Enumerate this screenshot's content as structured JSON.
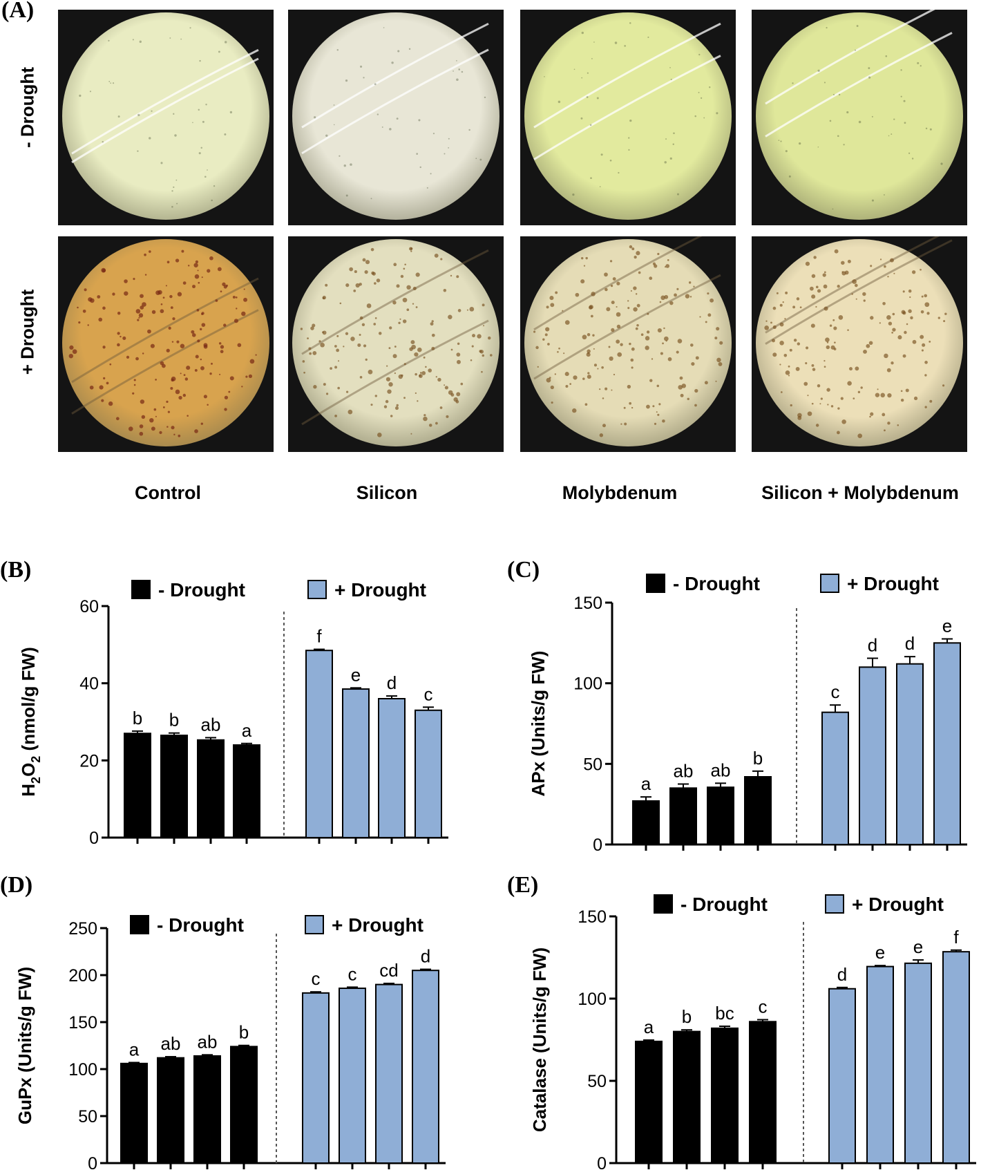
{
  "panel_a": {
    "label": "(A)",
    "row_labels": [
      "- Drought",
      "+ Drought"
    ],
    "column_labels": [
      "Control",
      "Silicon",
      "Molybdenum",
      "Silicon + Molybdenum"
    ],
    "colors": {
      "minus": [
        "#e9ecc2",
        "#e8e6d6",
        "#e2ea9e",
        "#dfe79a"
      ],
      "plus": [
        "#d8a34e",
        "#e3dfbf",
        "#e5dcb6",
        "#ecdfb8"
      ]
    }
  },
  "chart_data": [
    {
      "id": "B",
      "panel_label": "(B)",
      "type": "bar",
      "ylabel": "H2O2 (nmol/g FW)",
      "ylabel_main": "H",
      "ylabel_sub1": "2",
      "ylabel_mid": "O",
      "ylabel_sub2": "2",
      "ylabel_rest": " (nmol/g FW)",
      "ylim": [
        0,
        60
      ],
      "yticks": [
        "0",
        "20",
        "40",
        "60"
      ],
      "legend": [
        "- Drought",
        "+ Drought"
      ],
      "series": [
        {
          "name": "- Drought",
          "color": "#000000",
          "values": [
            27,
            26.5,
            25.3,
            24
          ],
          "errors": [
            0.6,
            0.6,
            0.6,
            0.4
          ],
          "letters": [
            "b",
            "b",
            "ab",
            "a"
          ]
        },
        {
          "name": "+ Drought",
          "color": "#8faed6",
          "values": [
            48.5,
            38.5,
            36,
            33
          ],
          "errors": [
            0.3,
            0.3,
            0.7,
            0.8
          ],
          "letters": [
            "f",
            "e",
            "d",
            "c"
          ]
        }
      ]
    },
    {
      "id": "C",
      "panel_label": "(C)",
      "type": "bar",
      "ylabel": "APx (Units/g FW)",
      "ylim": [
        0,
        150
      ],
      "yticks": [
        "0",
        "50",
        "100",
        "150"
      ],
      "legend": [
        "- Drought",
        "+ Drought"
      ],
      "series": [
        {
          "name": "- Drought",
          "color": "#000000",
          "values": [
            27,
            35,
            35.5,
            42
          ],
          "errors": [
            2.5,
            2.5,
            2.5,
            3.5
          ],
          "letters": [
            "a",
            "ab",
            "ab",
            "b"
          ]
        },
        {
          "name": "+ Drought",
          "color": "#8faed6",
          "values": [
            82,
            110,
            112,
            125
          ],
          "errors": [
            4.5,
            5.5,
            4.5,
            2.5
          ],
          "letters": [
            "c",
            "d",
            "d",
            "e"
          ]
        }
      ]
    },
    {
      "id": "D",
      "panel_label": "(D)",
      "type": "bar",
      "ylabel": "GuPx (Units/g FW)",
      "ylim": [
        0,
        250
      ],
      "yticks": [
        "0",
        "50",
        "100",
        "150",
        "200",
        "250"
      ],
      "legend": [
        "- Drought",
        "+ Drought"
      ],
      "series": [
        {
          "name": "- Drought",
          "color": "#000000",
          "values": [
            106,
            112,
            114,
            124
          ],
          "errors": [
            1,
            1.2,
            1.2,
            1.2
          ],
          "letters": [
            "a",
            "ab",
            "ab",
            "b"
          ]
        },
        {
          "name": "+ Drought",
          "color": "#8faed6",
          "values": [
            181,
            186,
            190,
            205
          ],
          "errors": [
            1.2,
            1.2,
            1.2,
            1.2
          ],
          "letters": [
            "c",
            "c",
            "cd",
            "d"
          ]
        }
      ]
    },
    {
      "id": "E",
      "panel_label": "(E)",
      "type": "bar",
      "ylabel": "Catalase (Units/g FW)",
      "ylim": [
        0,
        150
      ],
      "yticks": [
        "0",
        "50",
        "100",
        "150"
      ],
      "legend": [
        "- Drought",
        "+ Drought"
      ],
      "series": [
        {
          "name": "- Drought",
          "color": "#000000",
          "values": [
            74,
            80,
            82,
            86
          ],
          "errors": [
            0.8,
            1,
            1.2,
            1.2
          ],
          "letters": [
            "a",
            "b",
            "bc",
            "c"
          ]
        },
        {
          "name": "+ Drought",
          "color": "#8faed6",
          "values": [
            106,
            119.5,
            121.5,
            128.5
          ],
          "errors": [
            0.8,
            0.6,
            2,
            1
          ],
          "letters": [
            "d",
            "e",
            "e",
            "f"
          ]
        }
      ]
    }
  ]
}
